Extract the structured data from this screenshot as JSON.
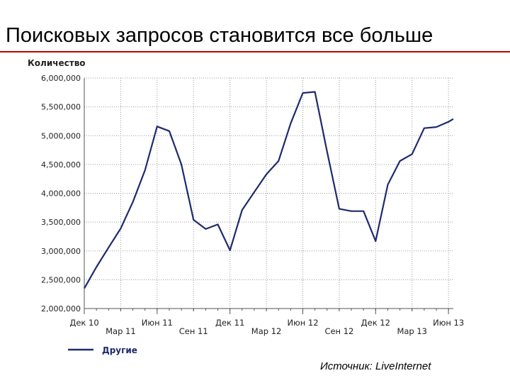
{
  "slide": {
    "title": "Поисковых запросов становится все больше",
    "source": "Источник: LiveInternet",
    "accent_color": "#c00000"
  },
  "chart_data": {
    "type": "line",
    "ylabel": "Количество",
    "ylim": [
      2000000,
      6000000
    ],
    "yticks": [
      2000000,
      2500000,
      3000000,
      3500000,
      4000000,
      4500000,
      5000000,
      5500000,
      6000000
    ],
    "ytick_labels": [
      "2,000,000",
      "2,500,000",
      "3,000,000",
      "3,500,000",
      "4,000,000",
      "4,500,000",
      "5,000,000",
      "5,500,000",
      "6,000,000"
    ],
    "x_range": [
      0,
      30.4
    ],
    "x_ticks": [
      {
        "x": 0,
        "label": "Дек 10",
        "row": 1
      },
      {
        "x": 3,
        "label": "Мар 11",
        "row": 2
      },
      {
        "x": 6,
        "label": "Июн 11",
        "row": 1
      },
      {
        "x": 9,
        "label": "Сен 11",
        "row": 2
      },
      {
        "x": 12,
        "label": "Дек 11",
        "row": 1
      },
      {
        "x": 15,
        "label": "Мар 12",
        "row": 2
      },
      {
        "x": 18,
        "label": "Июн 12",
        "row": 1
      },
      {
        "x": 21,
        "label": "Сен 12",
        "row": 2
      },
      {
        "x": 24,
        "label": "Дек 12",
        "row": 1
      },
      {
        "x": 27,
        "label": "Мар 13",
        "row": 2
      },
      {
        "x": 30,
        "label": "Июн 13",
        "row": 1
      }
    ],
    "grid": true,
    "legend_position": "bottom-left",
    "series": [
      {
        "name": "Другие",
        "color": "#1f2a6e",
        "x": [
          0,
          1,
          2,
          3,
          4,
          5,
          6,
          7,
          8,
          9,
          10,
          11,
          12,
          13,
          14,
          15,
          16,
          17,
          18,
          19,
          20,
          21,
          22,
          23,
          24,
          25,
          26,
          27,
          28,
          29,
          30,
          30.4
        ],
        "values": [
          2350000,
          2720000,
          3060000,
          3390000,
          3850000,
          4400000,
          5160000,
          5080000,
          4500000,
          3540000,
          3380000,
          3460000,
          3010000,
          3710000,
          4020000,
          4330000,
          4560000,
          5210000,
          5740000,
          5760000,
          4720000,
          3730000,
          3690000,
          3690000,
          3170000,
          4150000,
          4560000,
          4680000,
          5130000,
          5150000,
          5240000,
          5290000
        ]
      }
    ]
  }
}
